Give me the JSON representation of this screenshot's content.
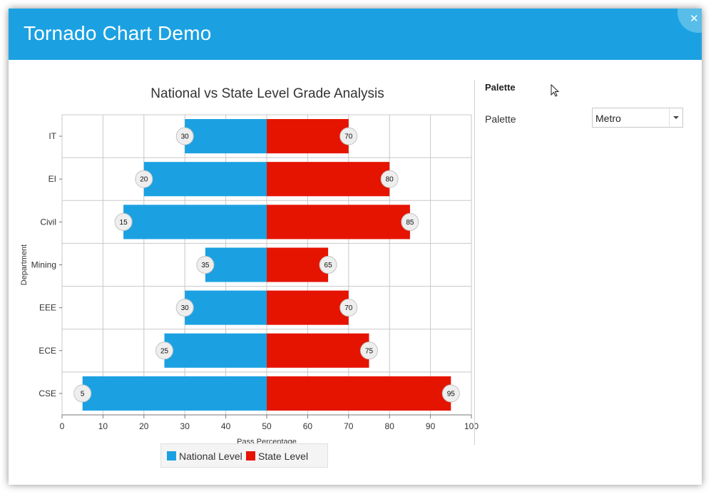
{
  "window": {
    "title": "Tornado Chart Demo"
  },
  "close_icon": "close-icon",
  "panel": {
    "header": "Palette",
    "palette_label": "Palette",
    "palette_value": "Metro"
  },
  "colors": {
    "accent": "#1ba1e2",
    "national": "#1ba1e2",
    "state": "#e51400"
  },
  "chart_data": {
    "type": "bar",
    "orientation": "horizontal-tornado",
    "title": "National vs State Level Grade Analysis",
    "xlabel": "Pass Percentage",
    "ylabel": "Department",
    "xlim": [
      0,
      100
    ],
    "xticks": [
      0,
      10,
      20,
      30,
      40,
      50,
      60,
      70,
      80,
      90,
      100
    ],
    "baseline": 50,
    "categories": [
      "IT",
      "EI",
      "Civil",
      "Mining",
      "EEE",
      "ECE",
      "CSE"
    ],
    "series": [
      {
        "name": "National Level",
        "values": [
          30,
          20,
          15,
          35,
          30,
          25,
          5
        ]
      },
      {
        "name": "State Level",
        "values": [
          70,
          80,
          85,
          65,
          70,
          75,
          95
        ]
      }
    ],
    "grid": true,
    "legend": "bottom"
  }
}
